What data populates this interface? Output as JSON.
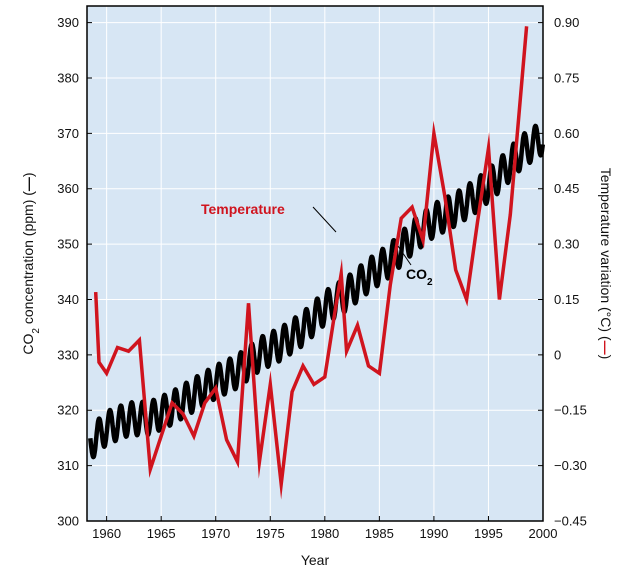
{
  "chart_data": {
    "type": "line",
    "xlabel": "Year",
    "xlim": [
      1958.2,
      2000
    ],
    "xticks": [
      1960,
      1965,
      1970,
      1975,
      1980,
      1985,
      1990,
      1995,
      2000
    ],
    "left_axis": {
      "ylabel_pre": "CO",
      "ylabel_sub": "2",
      "ylabel_post": " concentration (ppm) (",
      "ylabel_dash": "—",
      "ylabel_end": ")",
      "ylim": [
        300,
        393
      ],
      "ticks": [
        300,
        310,
        320,
        330,
        340,
        350,
        360,
        370,
        380,
        390
      ]
    },
    "right_axis": {
      "ylabel": "Temperature variation (°C) (",
      "ylabel_dash": "—",
      "ylabel_end": ")",
      "ylim": [
        -0.45,
        0.945
      ],
      "ticks": [
        0.9,
        0.75,
        0.6,
        0.45,
        0.3,
        0.15,
        0,
        -0.15,
        -0.3,
        -0.45
      ],
      "tick_labels": [
        "0.90",
        "0.75",
        "0.60",
        "0.45",
        "0.30",
        "0.15",
        "0",
        "−0.15",
        "−0.30",
        "−0.45"
      ]
    },
    "grid": true,
    "series": [
      {
        "name": "Temperature",
        "axis": "right",
        "color": "#d0141e",
        "x": [
          1959.0,
          1959.3,
          1960.0,
          1961.0,
          1962.0,
          1963.0,
          1964.0,
          1965.0,
          1966.0,
          1967.0,
          1968.0,
          1969.0,
          1970.0,
          1971.0,
          1972.0,
          1973.0,
          1974.0,
          1975.0,
          1976.0,
          1977.0,
          1978.0,
          1979.0,
          1980.0,
          1981.0,
          1981.5,
          1982.0,
          1983.0,
          1984.0,
          1985.0,
          1986.0,
          1987.0,
          1988.0,
          1989.0,
          1990.0,
          1991.0,
          1992.0,
          1993.0,
          1994.0,
          1995.0,
          1996.0,
          1997.0,
          1998.5
        ],
        "values": [
          0.17,
          -0.02,
          -0.05,
          0.02,
          0.01,
          0.04,
          -0.31,
          -0.22,
          -0.13,
          -0.16,
          -0.22,
          -0.13,
          -0.09,
          -0.23,
          -0.29,
          0.14,
          -0.29,
          -0.08,
          -0.35,
          -0.1,
          -0.03,
          -0.08,
          -0.06,
          0.13,
          0.22,
          0.01,
          0.08,
          -0.03,
          -0.05,
          0.19,
          0.37,
          0.4,
          0.31,
          0.6,
          0.43,
          0.23,
          0.15,
          0.36,
          0.56,
          0.15,
          0.38,
          0.89
        ]
      },
      {
        "name": "CO2",
        "name_pre": "CO",
        "name_sub": "2",
        "axis": "left",
        "color": "#000000",
        "x": [
          1958.5,
          1960,
          1962,
          1964,
          1966,
          1968,
          1970,
          1972,
          1974,
          1976,
          1978,
          1980,
          1982,
          1984,
          1986,
          1988,
          1990,
          1992,
          1994,
          1996,
          1998,
          2000
        ],
        "values": [
          314.0,
          316.8,
          318.4,
          318.6,
          320.4,
          322.8,
          325.1,
          327.0,
          330.1,
          332.0,
          334.7,
          338.5,
          341.0,
          344.3,
          347.1,
          351.2,
          354.3,
          356.3,
          358.9,
          362.4,
          366.6,
          369.3
        ],
        "seasonal_amplitude_ppm": 3
      }
    ],
    "annotations": [
      {
        "text": "Temperature",
        "series": "Temperature",
        "color": "#d0141e"
      },
      {
        "text_pre": "CO",
        "text_sub": "2",
        "series": "CO2",
        "color": "#000000"
      }
    ],
    "colors": {
      "plot_background": "#d7e6f4",
      "grid": "#ffffff",
      "frame": "#000000"
    }
  }
}
